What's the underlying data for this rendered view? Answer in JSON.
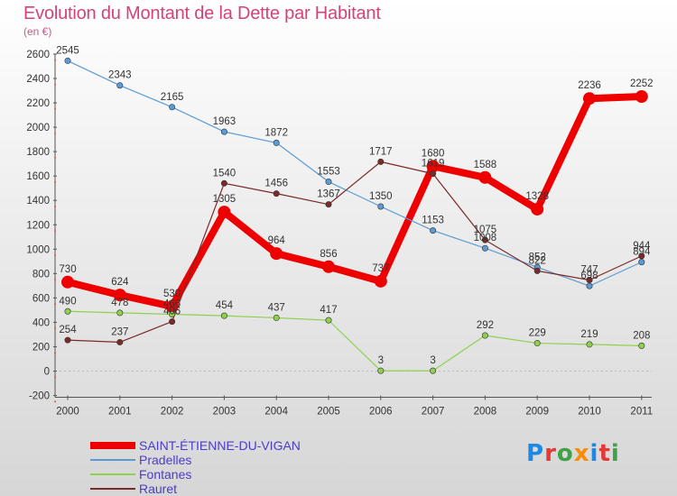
{
  "title": "Evolution du Montant de la Dette par Habitant",
  "subtitle": "(en €)",
  "chart_data": {
    "type": "line",
    "title": "Evolution du Montant de la Dette par Habitant",
    "ylabel": "(en €)",
    "xlabel": "",
    "categories": [
      "2000",
      "2001",
      "2002",
      "2003",
      "2004",
      "2005",
      "2006",
      "2007",
      "2008",
      "2009",
      "2010",
      "2011"
    ],
    "ylim": [
      -200,
      2600
    ],
    "yticks": [
      -200,
      0,
      200,
      400,
      600,
      800,
      1000,
      1200,
      1400,
      1600,
      1800,
      2000,
      2200,
      2400,
      2600
    ],
    "grid": false,
    "legend": "bottom-left",
    "series": [
      {
        "name": "SAINT-ÉTIENNE-DU-VIGAN",
        "color": "#ee0000",
        "width": 8,
        "values": [
          730,
          624,
          530,
          1305,
          964,
          856,
          737,
          1680,
          1588,
          1328,
          2236,
          2252
        ],
        "labels": [
          "730",
          "624",
          "530",
          "1305",
          "964",
          "856",
          "737",
          "1680",
          "1588",
          "1328",
          "2236",
          "2252"
        ]
      },
      {
        "name": "Pradelles",
        "color": "#5b9bd5",
        "width": 1.2,
        "values": [
          2545,
          2343,
          2165,
          1963,
          1872,
          1553,
          1350,
          1153,
          1008,
          852,
          698,
          894
        ],
        "labels": [
          "2545",
          "2343",
          "2165",
          "1963",
          "1872",
          "1553",
          "1350",
          "1153",
          "1008",
          "852",
          "698",
          "894"
        ]
      },
      {
        "name": "Fontanes",
        "color": "#8fd14f",
        "width": 1.2,
        "values": [
          490,
          478,
          466,
          454,
          437,
          417,
          3,
          3,
          292,
          229,
          219,
          208
        ],
        "labels": [
          "490",
          "478",
          "466",
          "454",
          "437",
          "417",
          "3",
          "3",
          "292",
          "229",
          "219",
          "208"
        ]
      },
      {
        "name": "Rauret",
        "color": "#7b2a2a",
        "width": 1.2,
        "values": [
          254,
          237,
          406,
          1540,
          1456,
          1367,
          1717,
          1619,
          1075,
          822,
          747,
          944
        ],
        "labels": [
          "254",
          "237",
          "406",
          "1540",
          "1456",
          "1367",
          "1717",
          "1619",
          "1075",
          "822",
          "747",
          "944"
        ]
      }
    ]
  },
  "logo": {
    "letters": [
      "P",
      "r",
      "o",
      "x",
      "i",
      "t",
      "i"
    ],
    "colors": [
      "#1e88e5",
      "#e53935",
      "#43a047",
      "#fb8c00",
      "#1e88e5",
      "#e53935",
      "#43a047"
    ]
  }
}
